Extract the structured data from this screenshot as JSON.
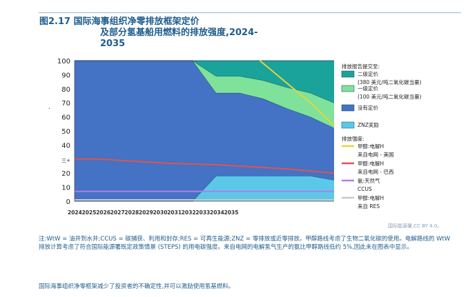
{
  "header": {
    "title_line1": "图2.17 国际海事组织净零排放框架定价",
    "title_line2": "及部分氢基船用燃料的排放强度,2024-",
    "title_line3": "2035"
  },
  "chart_data": {
    "type": "area",
    "x": [
      2024,
      2025,
      2026,
      2027,
      2028,
      2029,
      2030,
      2031,
      2032,
      2033,
      2034,
      2035
    ],
    "x_tick_labels": [
      "2024",
      "2025",
      "2026",
      "2027",
      "2028",
      "2029",
      "2030",
      "2031",
      "2032",
      "2033",
      "2034",
      "2035"
    ],
    "y_ticks": [
      0,
      10,
      20,
      "三+",
      40,
      50,
      60,
      70,
      80,
      90,
      100
    ],
    "ylim": [
      0,
      100
    ],
    "series_stacked": [
      {
        "name": "ZNZ奖励",
        "color": "#5bc8e8",
        "values": [
          0,
          0,
          0,
          0,
          0,
          0,
          18,
          18,
          18,
          18,
          18,
          15
        ]
      },
      {
        "name": "没有定价",
        "color": "#4472c4",
        "values": [
          100,
          100,
          100,
          100,
          100,
          100,
          59,
          59,
          55,
          48,
          42,
          37
        ]
      },
      {
        "name": "一级定价(100 美元/吨二氧化碳当量)",
        "color": "#7ee29a",
        "values": [
          0,
          0,
          0,
          0,
          0,
          0,
          12,
          12,
          13,
          15,
          17,
          18
        ]
      },
      {
        "name": "二级定价(380 美元/吨二氧化碳当量)",
        "color": "#1aa39b",
        "values": [
          0,
          0,
          0,
          0,
          0,
          0,
          11,
          11,
          14,
          19,
          23,
          30
        ]
      }
    ],
    "intensity_lines": [
      {
        "name": "甲醇:电解H 来自电网 - 美国",
        "color": "#e8d43a",
        "values": [
          null,
          null,
          null,
          null,
          null,
          null,
          null,
          112,
          98,
          84,
          70,
          54
        ]
      },
      {
        "name": "甲醇:电解H 来自电网 - 巴西",
        "color": "#e0554a",
        "values": [
          30,
          30,
          29,
          28,
          27,
          26.5,
          26,
          25,
          24,
          23,
          21.5,
          20
        ]
      },
      {
        "name": "氨:天然气 CCUS",
        "color": "#b47be6",
        "values": [
          7,
          7,
          7,
          7,
          7,
          7,
          7,
          7,
          7,
          7,
          7,
          7
        ]
      },
      {
        "name": "甲醇:电解H 来自 RES",
        "color": "#c8c8c8",
        "values": [
          1,
          1,
          1,
          1,
          1,
          1,
          1,
          1,
          1,
          1,
          1,
          1
        ]
      }
    ]
  },
  "legend": {
    "section1_title": "排放报告提交至:",
    "items1": [
      {
        "label1": "二级定价",
        "label2": "(380 美元/吨二氧化碳当量)",
        "color": "#1aa39b"
      },
      {
        "label1": "一级定价",
        "label2": "(100 美元/吨二氧化碳当量)",
        "color": "#7ee29a"
      },
      {
        "label1": "没有定价",
        "label2": "",
        "color": "#4472c4"
      },
      {
        "label1": "ZNZ奖励",
        "label2": "",
        "color": "#5bc8e8"
      }
    ],
    "section2_title": "排放强度:",
    "items2": [
      {
        "label1": "甲醇:电解H",
        "label2": "来自电网 - 美国",
        "color": "#e8d43a"
      },
      {
        "label1": "甲醇:电解H",
        "label2": "来自电网 - 巴西",
        "color": "#e0554a"
      },
      {
        "label1": "氨:天然气",
        "label2": "CCUS",
        "color": "#b47be6"
      },
      {
        "label1": "甲醇:电解H",
        "label2": "来自 RES",
        "color": "#c8c8c8"
      }
    ]
  },
  "credit": "国际能源署,CC BY 4.0。",
  "note": "注:WtW = 油井到水井;CCUS = 碳捕获、利用和封存;RES = 可再生能源;ZNZ = 零排放或近零排放。甲醇路线考虑了生物二氧化碳的使用。电解路线的 WtW 排放计算考虑了符合国际能源署既定政策情景 (STEPS) 的用电碳强度。来自电网的电解氢气生产的氨比甲醇路线低约 5%,因此未在图表中显示。",
  "footer": "国际海事组织净零框架减少了投资者的不确定性,并可以激励使用氢基燃料。",
  "dot": "."
}
